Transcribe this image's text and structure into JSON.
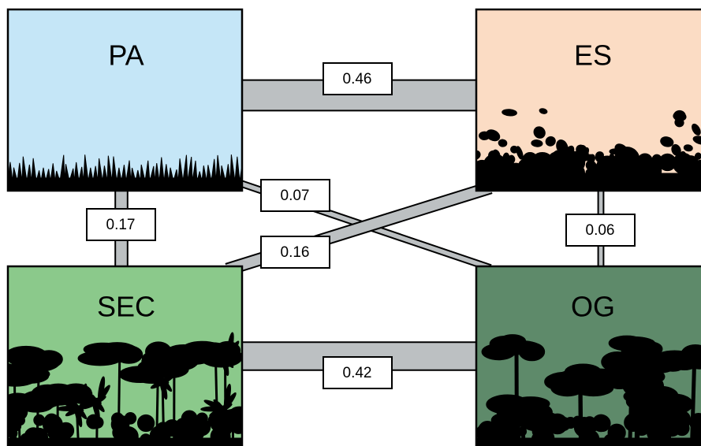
{
  "nodes": [
    {
      "label": "PA"
    },
    {
      "label": "ES"
    },
    {
      "label": "SEC"
    },
    {
      "label": "OG"
    }
  ],
  "edges": [
    {
      "value": 0.46
    },
    {
      "value": 0.42
    },
    {
      "value": 0.17
    },
    {
      "value": 0.06
    },
    {
      "value": 0.07
    },
    {
      "value": 0.16
    }
  ]
}
